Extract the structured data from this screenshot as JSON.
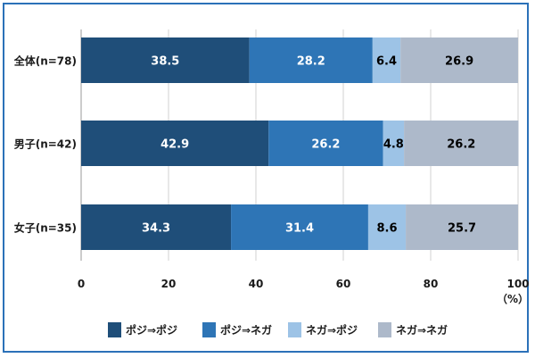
{
  "chart_data": {
    "type": "bar",
    "orientation": "horizontal",
    "stacked": true,
    "categories": [
      "全体(n=78)",
      "男子(n=42)",
      "女子(n=35)"
    ],
    "series": [
      {
        "name": "ポジ⇒ポジ",
        "values": [
          38.5,
          42.9,
          34.3
        ],
        "color": "#1f4e79",
        "label_color": "#ffffff"
      },
      {
        "name": "ポジ⇒ネガ",
        "values": [
          28.2,
          26.2,
          31.4
        ],
        "color": "#2e75b6",
        "label_color": "#ffffff"
      },
      {
        "name": "ネガ⇒ポジ",
        "values": [
          6.4,
          4.8,
          8.6
        ],
        "color": "#9dc3e6",
        "label_color": "#000000"
      },
      {
        "name": "ネガ⇒ネガ",
        "values": [
          26.9,
          26.2,
          25.7
        ],
        "color": "#adb9ca",
        "label_color": "#000000"
      }
    ],
    "xlim": [
      0,
      100
    ],
    "xticks": [
      "0",
      "20",
      "40",
      "60",
      "80",
      "100"
    ],
    "x_unit_label": "（%）",
    "grid": true,
    "legend_position": "bottom",
    "frame_color": "#2b71b8"
  }
}
